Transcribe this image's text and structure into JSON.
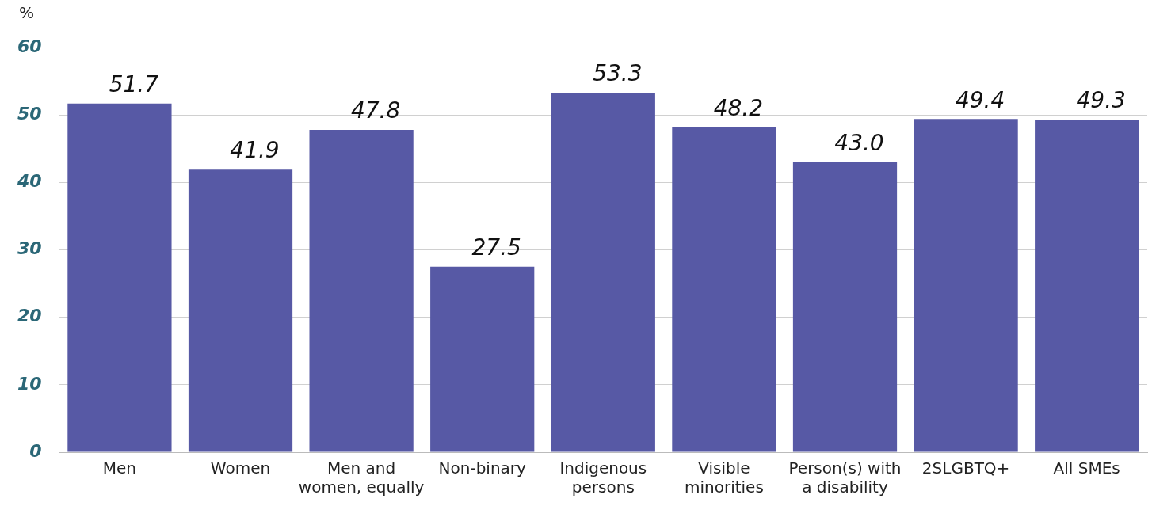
{
  "chart_data": {
    "type": "bar",
    "ylabel": "%",
    "categories": [
      "Men",
      "Women",
      "Men and women, equally",
      "Non-binary",
      "Indigenous persons",
      "Visible minorities",
      "Person(s) with a disability",
      "2SLGBTQ+",
      "All SMEs"
    ],
    "values": [
      51.7,
      41.9,
      47.8,
      27.5,
      53.3,
      48.2,
      43.0,
      49.4,
      49.3
    ],
    "value_labels": [
      "51.7",
      "41.9",
      "47.8",
      "27.5",
      "53.3",
      "48.2",
      "43.0",
      "49.4",
      "49.3"
    ],
    "color": "#5759a5",
    "ylim": [
      0,
      60
    ],
    "yticks": [
      0,
      10,
      20,
      30,
      40,
      50,
      60
    ],
    "grid": "y",
    "legend": false
  }
}
